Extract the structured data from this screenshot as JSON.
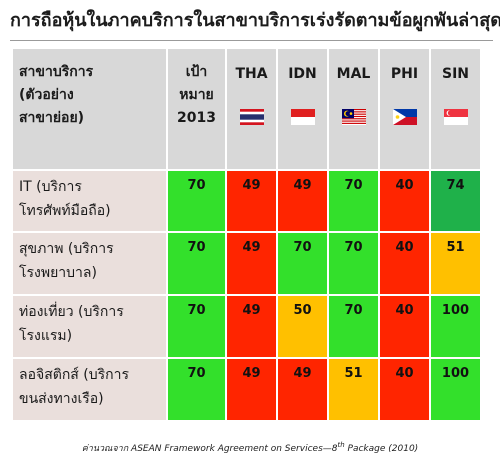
{
  "title": "การถือหุ้นในภาคบริการในสาขาบริการเร่งรัดตามข้อผูกพันล่าสุด",
  "header": {
    "sector_label_lines": [
      "สาขาบริการ",
      "(ตัวอย่าง",
      "สาขาย่อย)"
    ],
    "target_label_lines": [
      "เป้า",
      "หมาย",
      "2013"
    ],
    "countries": [
      {
        "code": "THA",
        "flag": "thailand-flag-icon"
      },
      {
        "code": "IDN",
        "flag": "indonesia-flag-icon"
      },
      {
        "code": "MAL",
        "flag": "malaysia-flag-icon"
      },
      {
        "code": "PHI",
        "flag": "philippines-flag-icon"
      },
      {
        "code": "SIN",
        "flag": "singapore-flag-icon"
      }
    ]
  },
  "rows": [
    {
      "label_lines": [
        "IT (บริการ",
        "โทรศัพท์มือถือ)"
      ],
      "target": "70",
      "values": [
        "49",
        "49",
        "70",
        "40",
        "74"
      ]
    },
    {
      "label_lines": [
        "สุขภาพ (บริการ",
        "โรงพยาบาล)"
      ],
      "target": "70",
      "values": [
        "49",
        "70",
        "70",
        "40",
        "51"
      ]
    },
    {
      "label_lines": [
        "ท่องเที่ยว (บริการ",
        "โรงแรม)"
      ],
      "target": "70",
      "values": [
        "49",
        "50",
        "70",
        "40",
        "100"
      ]
    },
    {
      "label_lines": [
        "ลอจิสติกส์ (บริการ",
        "ขนส่งทางเรือ)"
      ],
      "target": "70",
      "values": [
        "49",
        "49",
        "51",
        "40",
        "100"
      ]
    }
  ],
  "colors": {
    "green": "#33e02b",
    "red": "#ff2500",
    "amber": "#ffc000",
    "dark_green": "#1fb14a",
    "row_label_bg": "#eadfdc",
    "header_bg": "#d8d8d8"
  },
  "cell_colors": [
    [
      "green",
      "red",
      "red",
      "green",
      "red",
      "dark_green"
    ],
    [
      "green",
      "red",
      "green",
      "green",
      "red",
      "amber"
    ],
    [
      "green",
      "red",
      "amber",
      "green",
      "red",
      "green"
    ],
    [
      "green",
      "red",
      "red",
      "amber",
      "red",
      "green"
    ]
  ],
  "footer": {
    "prefix": "ค่านวณจาก ASEAN Framework Agreement on Services—8",
    "superscript": "th",
    "suffix": " Package (2010)"
  }
}
